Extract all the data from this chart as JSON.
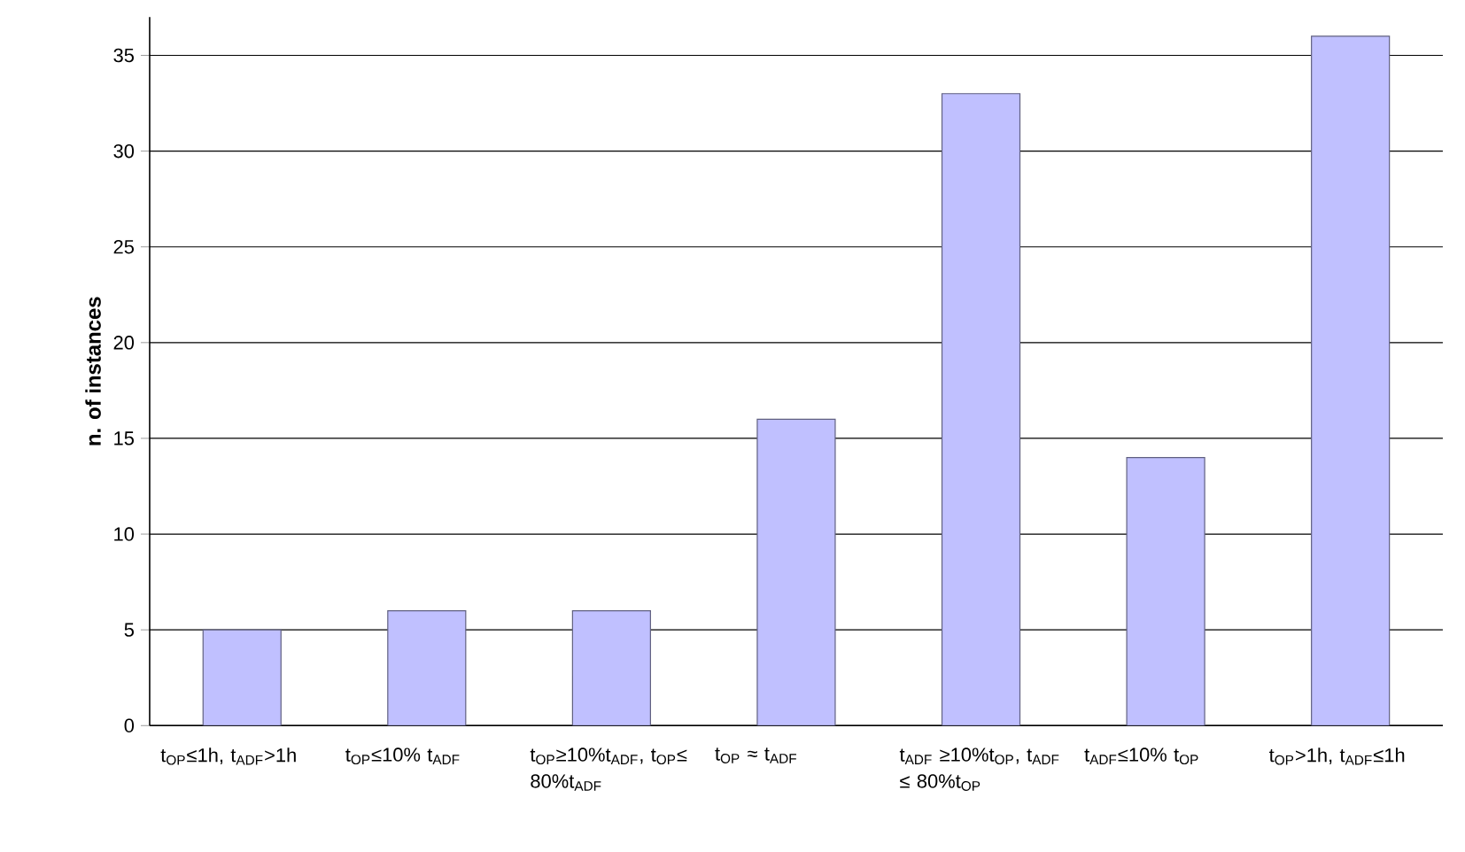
{
  "chart_data": {
    "type": "bar",
    "ylabel": "n. of instances",
    "categories": [
      "t$_{OP}$≤1h, t$_{ADF}$>1h",
      "t$_{OP}$≤10% t$_{ADF}$",
      "t$_{OP}$≥10%t$_{ADF}$, t$_{OP}$≤ 80%t$_{ADF}$",
      "t$_{OP}$ ≈ t$_{ADF}$",
      "t$_{ADF}$ ≥10%t$_{OP}$, t$_{ADF}$ ≤ 80%t$_{OP}$",
      "t$_{ADF}$≤10% t$_{OP}$",
      "t$_{OP}$>1h, t$_{ADF}$≤1h"
    ],
    "values": [
      5,
      6,
      6,
      16,
      33,
      14,
      36
    ],
    "color": "#c0c0ff",
    "ylim": [
      0,
      37
    ],
    "yticks": [
      0,
      5,
      10,
      15,
      20,
      25,
      30,
      35
    ],
    "grid": "y"
  }
}
